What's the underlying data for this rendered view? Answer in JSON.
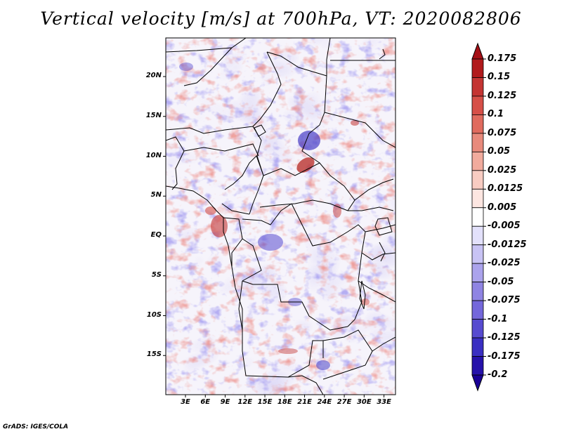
{
  "title": "Vertical velocity [m/s] at 700hPa, VT: 2020082806",
  "credit": "GrADS: IGES/COLA",
  "map": {
    "region": "Central Africa",
    "lat_ticks": [
      "20N",
      "15N",
      "10N",
      "5N",
      "EQ",
      "5S",
      "10S",
      "15S"
    ],
    "lat_values": [
      20,
      15,
      10,
      5,
      0,
      -5,
      -10,
      -15
    ],
    "lon_ticks": [
      "3E",
      "6E",
      "9E",
      "12E",
      "15E",
      "18E",
      "21E",
      "24E",
      "27E",
      "30E",
      "33E"
    ],
    "lon_values": [
      3,
      6,
      9,
      12,
      15,
      18,
      21,
      24,
      27,
      30,
      33
    ]
  },
  "colorbar": {
    "labels": [
      "0.175",
      "0.15",
      "0.125",
      "0.1",
      "0.075",
      "0.05",
      "0.025",
      "0.0125",
      "0.005",
      "-0.005",
      "-0.0125",
      "-0.025",
      "-0.05",
      "-0.075",
      "-0.1",
      "-0.125",
      "-0.175",
      "-0.2"
    ],
    "colors": [
      "#a50f15",
      "#b11a1c",
      "#c43533",
      "#d65048",
      "#e06b5e",
      "#e88a7c",
      "#f1ab9d",
      "#f8ccc2",
      "#fde6e1",
      "#ffffff",
      "#e3e1fb",
      "#c8c3f4",
      "#aba3ec",
      "#8f84e3",
      "#7467db",
      "#574bd0",
      "#3a2fc2",
      "#2612aa",
      "#1a0096"
    ]
  }
}
